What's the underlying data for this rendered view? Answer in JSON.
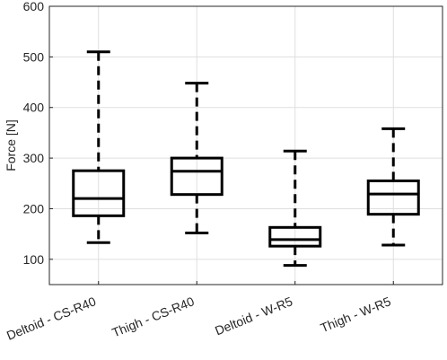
{
  "chart_data": {
    "type": "box",
    "ylabel": "Force [N]",
    "xlabel": "",
    "ylim": [
      50,
      600
    ],
    "yticks": [
      100,
      200,
      300,
      400,
      500,
      600
    ],
    "grid": true,
    "categories": [
      "Deltoid - CS-R40",
      "Thigh - CS-R40",
      "Deltoid - W-R5",
      "Thigh - W-R5"
    ],
    "boxes": [
      {
        "min": 133,
        "q1": 186,
        "median": 220,
        "q3": 275,
        "max": 510
      },
      {
        "min": 152,
        "q1": 228,
        "median": 274,
        "q3": 300,
        "max": 448
      },
      {
        "min": 88,
        "q1": 126,
        "median": 139,
        "q3": 163,
        "max": 314
      },
      {
        "min": 128,
        "q1": 189,
        "median": 229,
        "q3": 255,
        "max": 358
      }
    ]
  }
}
